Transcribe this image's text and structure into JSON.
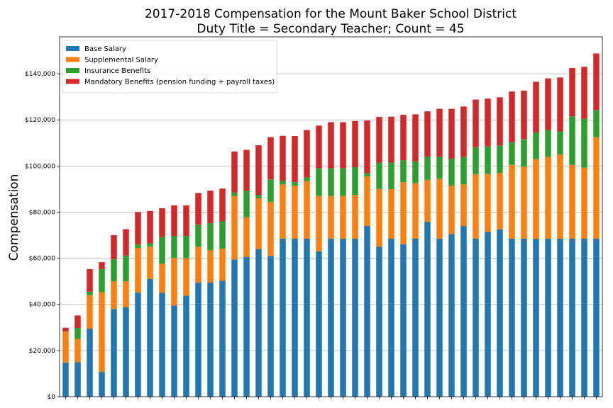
{
  "chart_data": {
    "type": "bar",
    "stacked": true,
    "title": "2017-2018 Compensation for the Mount Baker School District",
    "subtitle": "Duty Title = Secondary Teacher; Count = 45",
    "xlabel": "",
    "ylabel": "Compensation",
    "ylim": [
      0,
      156000
    ],
    "yticks": [
      0,
      20000,
      40000,
      60000,
      80000,
      100000,
      120000,
      140000
    ],
    "ytick_labels": [
      "$0",
      "$20,000",
      "$40,000",
      "$60,000",
      "$80,000",
      "$100,000",
      "$120,000",
      "$140,000"
    ],
    "grid": "horizontal",
    "legend_position": "top-left",
    "categories_count": 45,
    "series": [
      {
        "name": "Base Salary",
        "color": "#1f77b4",
        "values": [
          14800,
          15000,
          29500,
          10800,
          38000,
          38700,
          45200,
          51000,
          45000,
          39500,
          43800,
          49500,
          49500,
          50200,
          59500,
          60500,
          64000,
          61000,
          68500,
          68500,
          68500,
          63000,
          68500,
          68500,
          68500,
          74000,
          65000,
          68500,
          66000,
          68500,
          75800,
          68500,
          70500,
          74000,
          68500,
          71500,
          72500,
          68500,
          68500,
          68500,
          68500,
          68500,
          68500,
          68500,
          68500
        ]
      },
      {
        "name": "Supplemental Salary",
        "color": "#ff7f0e",
        "values": [
          13500,
          10000,
          14500,
          34500,
          12000,
          11300,
          19300,
          14000,
          12600,
          20700,
          16200,
          15500,
          14000,
          14000,
          27500,
          17200,
          22000,
          23500,
          23500,
          23000,
          25000,
          24000,
          18500,
          18500,
          19000,
          21500,
          25000,
          21500,
          27000,
          24000,
          18200,
          26000,
          21000,
          18000,
          28000,
          25000,
          24500,
          32000,
          31200,
          34500,
          35500,
          36500,
          32000,
          30800,
          44000
        ]
      },
      {
        "name": "Insurance Benefits",
        "color": "#2ca02c",
        "values": [
          0,
          4800,
          1500,
          10000,
          9700,
          11200,
          1500,
          1500,
          11600,
          9500,
          9700,
          9500,
          11700,
          11800,
          1500,
          11500,
          1500,
          9700,
          1500,
          1500,
          1500,
          12000,
          12000,
          12000,
          12000,
          1500,
          11500,
          11500,
          9500,
          9500,
          10000,
          9500,
          11700,
          12000,
          11700,
          12000,
          11800,
          9700,
          12000,
          11500,
          11500,
          10000,
          21000,
          21200,
          11800
        ]
      },
      {
        "name": "Mandatory Benefits (pension funding + payroll taxes)",
        "color": "#d62728",
        "values": [
          1600,
          5400,
          9800,
          3000,
          10300,
          11400,
          14000,
          14000,
          12500,
          13200,
          13200,
          13800,
          14100,
          14200,
          17800,
          17800,
          21500,
          18300,
          19600,
          20000,
          20600,
          18500,
          20000,
          20000,
          20000,
          22700,
          19800,
          19900,
          19700,
          20400,
          19700,
          20800,
          21600,
          21800,
          20600,
          20700,
          21000,
          22100,
          21000,
          22000,
          22500,
          23400,
          21000,
          22500,
          24500
        ]
      }
    ]
  }
}
